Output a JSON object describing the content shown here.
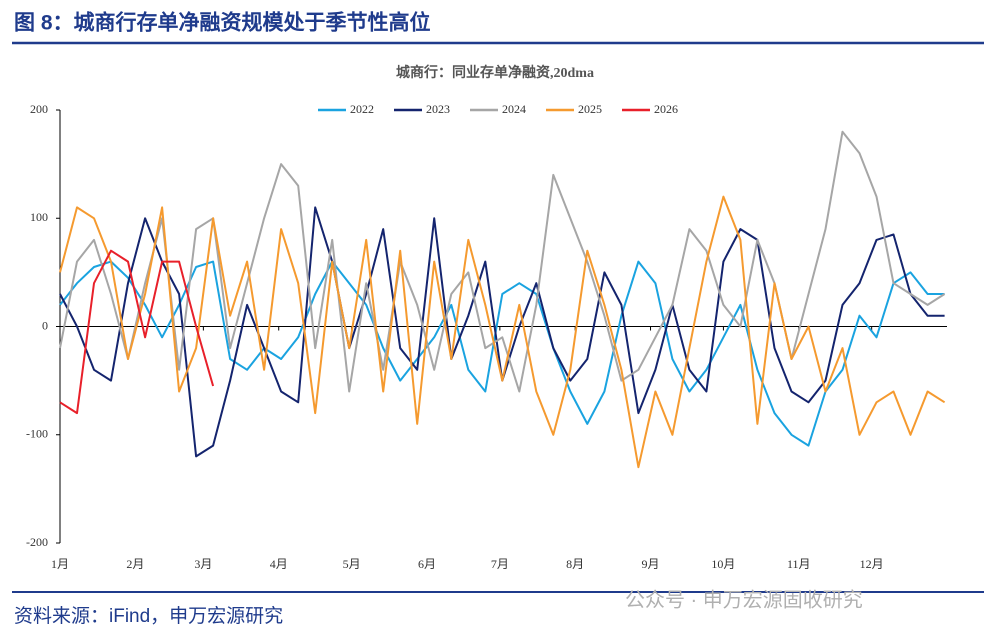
{
  "header": {
    "title": "图 8：城商行存单净融资规模处于季节性高位"
  },
  "footer": {
    "source": "资料来源：iFind，申万宏源研究",
    "watermark": "公众号 · 申万宏源固收研究"
  },
  "chart_data": {
    "type": "line",
    "title": "城商行：同业存单净融资,20dma",
    "x": [
      0,
      7,
      14,
      21,
      28,
      35,
      42,
      49,
      56,
      63,
      70,
      77,
      84,
      91,
      98,
      105,
      112,
      119,
      126,
      133,
      140,
      147,
      154,
      161,
      168,
      175,
      182,
      189,
      196,
      203,
      210,
      217,
      224,
      231,
      238,
      245,
      252,
      259,
      266,
      273,
      280,
      287,
      294,
      301,
      308,
      315,
      322,
      329,
      336,
      343,
      350,
      357,
      364
    ],
    "xlim": [
      0,
      365
    ],
    "xticks": [
      {
        "value": 0,
        "label": "1月"
      },
      {
        "value": 31,
        "label": "2月"
      },
      {
        "value": 59,
        "label": "3月"
      },
      {
        "value": 90,
        "label": "4月"
      },
      {
        "value": 120,
        "label": "5月"
      },
      {
        "value": 151,
        "label": "6月"
      },
      {
        "value": 181,
        "label": "7月"
      },
      {
        "value": 212,
        "label": "8月"
      },
      {
        "value": 243,
        "label": "9月"
      },
      {
        "value": 273,
        "label": "10月"
      },
      {
        "value": 304,
        "label": "11月"
      },
      {
        "value": 334,
        "label": "12月"
      }
    ],
    "ylim": [
      -200,
      200
    ],
    "yticks": [
      200,
      100,
      0,
      -100,
      -200
    ],
    "series": [
      {
        "name": "2022",
        "color": "#1aa3e0",
        "values": [
          20,
          40,
          55,
          60,
          45,
          20,
          -10,
          20,
          55,
          60,
          -30,
          -40,
          -20,
          -30,
          -10,
          30,
          60,
          40,
          20,
          -20,
          -50,
          -30,
          -10,
          20,
          -40,
          -60,
          30,
          40,
          30,
          -20,
          -60,
          -90,
          -60,
          10,
          60,
          40,
          -30,
          -60,
          -40,
          -10,
          20,
          -40,
          -80,
          -100,
          -110,
          -60,
          -40,
          10,
          -10,
          40,
          50,
          30,
          30
        ]
      },
      {
        "name": "2023",
        "color": "#14246e",
        "values": [
          30,
          0,
          -40,
          -50,
          40,
          100,
          60,
          30,
          -120,
          -110,
          -50,
          20,
          -20,
          -60,
          -70,
          110,
          60,
          -20,
          30,
          90,
          -20,
          -40,
          100,
          -30,
          10,
          60,
          -50,
          0,
          40,
          -20,
          -50,
          -30,
          50,
          20,
          -80,
          -40,
          20,
          -40,
          -60,
          60,
          90,
          80,
          -20,
          -60,
          -70,
          -50,
          20,
          40,
          80,
          85,
          30,
          10,
          10
        ]
      },
      {
        "name": "2024",
        "color": "#a6a6a6",
        "values": [
          -20,
          60,
          80,
          30,
          -30,
          40,
          100,
          -40,
          90,
          100,
          -20,
          40,
          100,
          150,
          130,
          -20,
          80,
          -60,
          40,
          -40,
          60,
          20,
          -40,
          30,
          50,
          -20,
          -10,
          -60,
          20,
          140,
          100,
          60,
          10,
          -50,
          -40,
          -10,
          20,
          90,
          70,
          20,
          0,
          80,
          40,
          -30,
          30,
          90,
          180,
          160,
          120,
          40,
          30,
          20,
          30
        ]
      },
      {
        "name": "2025",
        "color": "#f59a2f",
        "values": [
          50,
          110,
          100,
          60,
          -30,
          30,
          110,
          -60,
          -20,
          100,
          10,
          60,
          -40,
          90,
          40,
          -80,
          60,
          -20,
          80,
          -60,
          70,
          -90,
          60,
          -30,
          80,
          20,
          -50,
          20,
          -60,
          -100,
          -40,
          70,
          20,
          -40,
          -130,
          -60,
          -100,
          -20,
          60,
          120,
          80,
          -90,
          40,
          -30,
          0,
          -60,
          -20,
          -100,
          -70,
          -60,
          -100,
          -60,
          -70
        ]
      },
      {
        "name": "2026",
        "color": "#e8202a",
        "values": [
          -70,
          -80,
          40,
          70,
          60,
          -10,
          60,
          60,
          0,
          -55,
          null,
          null,
          null,
          null,
          null,
          null,
          null,
          null,
          null,
          null,
          null,
          null,
          null,
          null,
          null,
          null,
          null,
          null,
          null,
          null,
          null,
          null,
          null,
          null,
          null,
          null,
          null,
          null,
          null,
          null,
          null,
          null,
          null,
          null,
          null,
          null,
          null,
          null,
          null,
          null,
          null,
          null,
          null
        ]
      }
    ]
  }
}
